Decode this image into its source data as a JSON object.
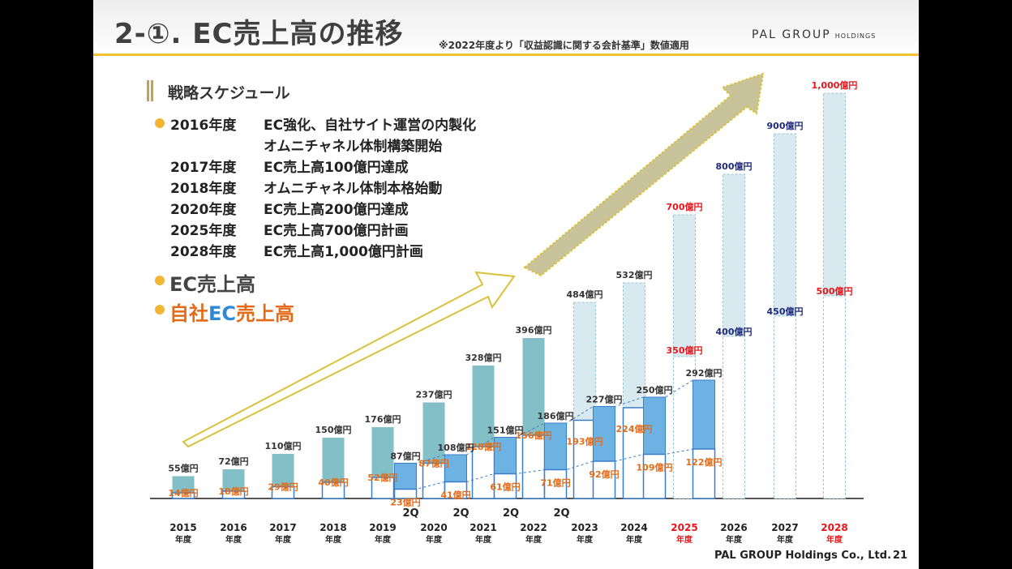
{
  "header": {
    "title": "2-①. EC売上高の推移",
    "note": "※2022年度より「収益認識に関する会計基準」数値適用",
    "logo_main": "PAL GROUP",
    "logo_sub": "HOLDINGS"
  },
  "schedule": {
    "title": "戦略スケジュール",
    "items": [
      {
        "year": "2016年度",
        "text": "EC強化、自社サイト運営の内製化"
      },
      {
        "year": "",
        "text": "オムニチャネル体制構築開始"
      },
      {
        "year": "2017年度",
        "text": "EC売上高100億円達成"
      },
      {
        "year": "2018年度",
        "text": "オムニチャネル体制本格始動"
      },
      {
        "year": "2020年度",
        "text": "EC売上高200億円達成"
      },
      {
        "year": "2025年度",
        "text": "EC売上高700億円計画"
      },
      {
        "year": "2028年度",
        "text": "EC売上高1,000億円計画"
      }
    ]
  },
  "legend": {
    "ec": "EC売上高",
    "own_prefix": "自社",
    "own_mid": "EC",
    "own_suffix": "売上高"
  },
  "footer": {
    "company": "PAL GROUP Holdings Co., Ltd.",
    "page": "21"
  },
  "colors": {
    "actual_ec": "#83bfc6",
    "own_ec": "#6cb3e3",
    "plan_ec": "#d8eaf0",
    "plan_label": "#e8161b",
    "target_label": "#1f2a7a",
    "own_label": "#e36c1a",
    "arrow": "#d9c13a"
  },
  "chart_data": {
    "type": "bar",
    "unit": "億円",
    "categories": [
      {
        "year": "2015",
        "sub": "年度",
        "q": "",
        "highlight": false
      },
      {
        "year": "2016",
        "sub": "年度",
        "q": "",
        "highlight": false
      },
      {
        "year": "2017",
        "sub": "年度",
        "q": "",
        "highlight": false
      },
      {
        "year": "2018",
        "sub": "年度",
        "q": "",
        "highlight": false
      },
      {
        "year": "2019",
        "sub": "年度",
        "q": "2Q",
        "highlight": false
      },
      {
        "year": "2020",
        "sub": "年度",
        "q": "2Q",
        "highlight": false
      },
      {
        "year": "2021",
        "sub": "年度",
        "q": "2Q",
        "highlight": false
      },
      {
        "year": "2022",
        "sub": "年度",
        "q": "2Q",
        "highlight": false
      },
      {
        "year": "2023",
        "sub": "年度",
        "q": "",
        "highlight": false
      },
      {
        "year": "2024",
        "sub": "年度",
        "q": "",
        "highlight": false
      },
      {
        "year": "2025",
        "sub": "年度",
        "q": "",
        "highlight": true
      },
      {
        "year": "2026",
        "sub": "年度",
        "q": "",
        "highlight": false
      },
      {
        "year": "2027",
        "sub": "年度",
        "q": "",
        "highlight": false
      },
      {
        "year": "2028",
        "sub": "年度",
        "q": "",
        "highlight": true
      }
    ],
    "series": [
      {
        "name": "EC売上高",
        "values": [
          55,
          72,
          110,
          150,
          176,
          237,
          328,
          396,
          484,
          532,
          700,
          800,
          900,
          1000
        ],
        "labels": [
          "55億円",
          "72億円",
          "110億円",
          "150億円",
          "176億円",
          "237億円",
          "328億円",
          "396億円",
          "484億円",
          "532億円",
          "700億円",
          "800億円",
          "900億円",
          "1,000億円"
        ],
        "status": [
          "actual",
          "actual",
          "actual",
          "actual",
          "actual",
          "actual",
          "actual",
          "actual",
          "actual-plan",
          "actual-plan",
          "plan",
          "target",
          "target",
          "plan"
        ]
      },
      {
        "name": "自社EC売上高",
        "values": [
          14,
          18,
          29,
          40,
          52,
          87,
          128,
          156,
          193,
          224,
          350,
          400,
          450,
          500
        ],
        "labels": [
          "14億円",
          "18億円",
          "29億円",
          "40億円",
          "52億円",
          "87億円",
          "128億円",
          "156億円",
          "193億円",
          "224億円",
          "350億円",
          "400億円",
          "450億円",
          "500億円"
        ],
        "label_style": [
          "own",
          "own",
          "own",
          "own",
          "own",
          "own",
          "own",
          "own",
          "own",
          "own",
          "plan",
          "target",
          "target",
          "plan"
        ]
      }
    ],
    "half_year": [
      {
        "after_year": "2019",
        "ec": 87,
        "ec_label": "87億円",
        "own": 23,
        "own_label": "23億円"
      },
      {
        "after_year": "2020",
        "ec": 108,
        "ec_label": "108億円",
        "own": 41,
        "own_label": "41億円"
      },
      {
        "after_year": "2021",
        "ec": 151,
        "ec_label": "151億円",
        "own": 61,
        "own_label": "61億円"
      },
      {
        "after_year": "2022",
        "ec": 186,
        "ec_label": "186億円",
        "own": 71,
        "own_label": "71億円"
      },
      {
        "after_year": "2023",
        "ec": 227,
        "ec_label": "227億円",
        "own": 92,
        "own_label": "92億円"
      },
      {
        "after_year": "2024",
        "ec": 250,
        "ec_label": "250億円",
        "own": 109,
        "own_label": "109億円"
      },
      {
        "after_year": "2025",
        "ec": 292,
        "ec_label": "292億円",
        "own": 122,
        "own_label": "122億円"
      }
    ]
  }
}
